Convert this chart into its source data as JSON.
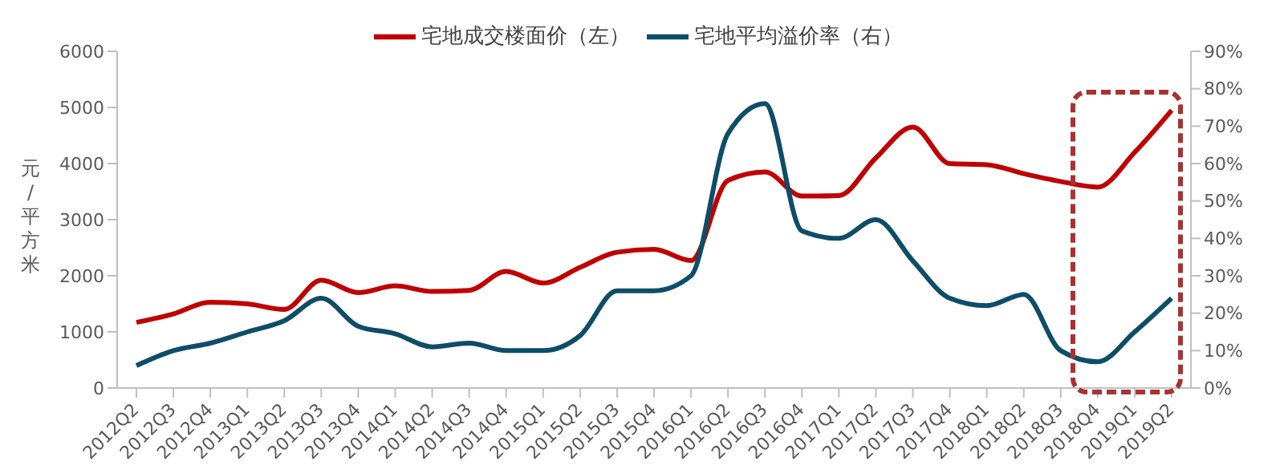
{
  "chart_data": {
    "type": "line",
    "ylabel": "元/平方米",
    "categories": [
      "2012Q2",
      "2012Q3",
      "2012Q4",
      "2013Q1",
      "2013Q2",
      "2013Q3",
      "2013Q4",
      "2014Q1",
      "2014Q2",
      "2014Q3",
      "2014Q4",
      "2015Q1",
      "2015Q2",
      "2015Q3",
      "2015Q4",
      "2016Q1",
      "2016Q2",
      "2016Q3",
      "2016Q4",
      "2017Q1",
      "2017Q2",
      "2017Q3",
      "2017Q4",
      "2018Q1",
      "2018Q2",
      "2018Q3",
      "2018Q4",
      "2019Q1",
      "2019Q2"
    ],
    "series": [
      {
        "name": "宅地成交楼面价（左）",
        "color": "#c00000",
        "values": [
          1170,
          1320,
          1530,
          1500,
          1400,
          1920,
          1700,
          1820,
          1720,
          1740,
          2080,
          1870,
          2150,
          2420,
          2470,
          2270,
          3700,
          3850,
          3420,
          3430,
          4100,
          4650,
          4000,
          3980,
          3820,
          3680,
          3580,
          4200,
          4950
        ]
      },
      {
        "name": "宅地平均溢价率（右）",
        "color": "#0e4d68",
        "axis": "y2",
        "values": [
          6,
          10,
          12,
          15,
          18,
          24,
          16.5,
          14.5,
          11,
          12,
          10,
          10,
          14,
          26,
          26,
          30,
          68,
          76,
          42,
          40,
          45,
          34,
          24,
          22,
          25,
          10,
          7,
          15,
          24
        ]
      }
    ],
    "ylim": [
      0,
      6000
    ],
    "yticks": [
      0,
      1000,
      2000,
      3000,
      4000,
      5000,
      6000
    ],
    "y2lim": [
      0,
      90
    ],
    "y2ticks": [
      {
        "value": 0,
        "label": "0%"
      },
      {
        "value": 10,
        "label": "10%"
      },
      {
        "value": 20,
        "label": "20%"
      },
      {
        "value": 30,
        "label": "30%"
      },
      {
        "value": 40,
        "label": "40%"
      },
      {
        "value": 50,
        "label": "50%"
      },
      {
        "value": 60,
        "label": "60%"
      },
      {
        "value": 70,
        "label": "70%"
      },
      {
        "value": 80,
        "label": "80%"
      },
      {
        "value": 90,
        "label": "90%"
      }
    ],
    "legend": "top",
    "grid": false,
    "marker": "none",
    "line_style": "solid"
  }
}
